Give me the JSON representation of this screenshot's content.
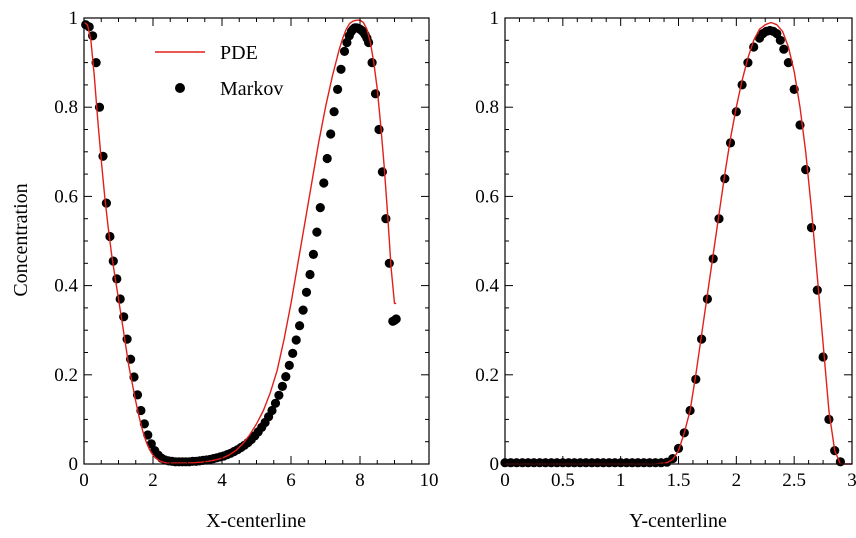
{
  "chart_data": [
    {
      "type": "line",
      "xlabel": "X-centerline",
      "ylabel": "Concentration",
      "xlim": [
        0,
        10
      ],
      "ylim": [
        0,
        1
      ],
      "xticks": [
        "0",
        "2",
        "4",
        "6",
        "8",
        "10"
      ],
      "yticks": [
        "0",
        "0.2",
        "0.4",
        "0.6",
        "0.8",
        "1"
      ],
      "legend": {
        "position": "top-left",
        "entries": [
          "PDE",
          "Markov"
        ]
      },
      "series": [
        {
          "name": "PDE",
          "style": "line",
          "color": "#e0201a",
          "x": [
            0.0,
            0.1,
            0.2,
            0.3,
            0.4,
            0.5,
            0.6,
            0.7,
            0.8,
            0.9,
            1.0,
            1.1,
            1.2,
            1.3,
            1.4,
            1.5,
            1.6,
            1.7,
            1.8,
            1.9,
            2.0,
            2.1,
            2.2,
            2.3,
            2.4,
            2.6,
            2.8,
            3.0,
            3.2,
            3.4,
            3.6,
            3.8,
            4.0,
            4.2,
            4.4,
            4.6,
            4.8,
            5.0,
            5.2,
            5.4,
            5.6,
            5.8,
            6.0,
            6.2,
            6.4,
            6.6,
            6.8,
            7.0,
            7.2,
            7.4,
            7.5,
            7.6,
            7.7,
            7.8,
            7.9,
            8.0,
            8.1,
            8.2,
            8.3,
            8.4,
            8.5,
            8.6,
            8.7,
            8.8,
            8.9,
            8.95,
            9.0,
            9.05
          ],
          "y": [
            0.99,
            0.985,
            0.95,
            0.87,
            0.77,
            0.68,
            0.6,
            0.53,
            0.47,
            0.42,
            0.37,
            0.32,
            0.27,
            0.22,
            0.18,
            0.14,
            0.105,
            0.075,
            0.05,
            0.032,
            0.02,
            0.012,
            0.007,
            0.004,
            0.002,
            0.002,
            0.002,
            0.002,
            0.003,
            0.004,
            0.006,
            0.009,
            0.013,
            0.02,
            0.03,
            0.045,
            0.065,
            0.09,
            0.12,
            0.16,
            0.21,
            0.28,
            0.36,
            0.45,
            0.54,
            0.63,
            0.72,
            0.8,
            0.87,
            0.93,
            0.955,
            0.975,
            0.988,
            0.993,
            0.995,
            0.995,
            0.99,
            0.975,
            0.945,
            0.9,
            0.84,
            0.76,
            0.67,
            0.56,
            0.44,
            0.4,
            0.36,
            0.36
          ]
        },
        {
          "name": "Markov",
          "style": "points",
          "color": "#000000",
          "x": [
            0.05,
            0.15,
            0.25,
            0.35,
            0.45,
            0.55,
            0.65,
            0.75,
            0.85,
            0.95,
            1.05,
            1.15,
            1.25,
            1.35,
            1.45,
            1.55,
            1.65,
            1.75,
            1.85,
            1.95,
            2.05,
            2.15,
            2.25,
            2.35,
            2.45,
            2.55,
            2.65,
            2.75,
            2.85,
            2.95,
            3.05,
            3.15,
            3.25,
            3.35,
            3.45,
            3.55,
            3.65,
            3.75,
            3.85,
            3.95,
            4.05,
            4.15,
            4.25,
            4.35,
            4.45,
            4.55,
            4.65,
            4.75,
            4.85,
            4.95,
            5.05,
            5.15,
            5.25,
            5.35,
            5.45,
            5.55,
            5.65,
            5.75,
            5.85,
            5.95,
            6.05,
            6.15,
            6.25,
            6.35,
            6.45,
            6.55,
            6.65,
            6.75,
            6.85,
            6.95,
            7.05,
            7.15,
            7.25,
            7.35,
            7.45,
            7.55,
            7.62,
            7.69,
            7.75,
            7.8,
            7.85,
            7.9,
            7.95,
            8.0,
            8.05,
            8.1,
            8.15,
            8.2,
            8.25,
            8.35,
            8.45,
            8.55,
            8.65,
            8.75,
            8.85,
            8.95,
            9.0,
            9.05
          ],
          "y": [
            0.985,
            0.98,
            0.96,
            0.9,
            0.8,
            0.69,
            0.585,
            0.51,
            0.455,
            0.415,
            0.37,
            0.33,
            0.28,
            0.235,
            0.195,
            0.155,
            0.12,
            0.09,
            0.065,
            0.045,
            0.03,
            0.02,
            0.013,
            0.009,
            0.007,
            0.006,
            0.005,
            0.005,
            0.005,
            0.005,
            0.005,
            0.006,
            0.006,
            0.007,
            0.008,
            0.009,
            0.01,
            0.012,
            0.014,
            0.016,
            0.018,
            0.021,
            0.024,
            0.028,
            0.032,
            0.037,
            0.042,
            0.048,
            0.055,
            0.063,
            0.072,
            0.082,
            0.093,
            0.106,
            0.12,
            0.136,
            0.154,
            0.174,
            0.196,
            0.221,
            0.248,
            0.278,
            0.31,
            0.345,
            0.385,
            0.425,
            0.47,
            0.52,
            0.575,
            0.63,
            0.685,
            0.74,
            0.79,
            0.84,
            0.885,
            0.925,
            0.945,
            0.96,
            0.97,
            0.975,
            0.978,
            0.978,
            0.977,
            0.975,
            0.972,
            0.968,
            0.962,
            0.955,
            0.945,
            0.9,
            0.83,
            0.75,
            0.655,
            0.55,
            0.45,
            0.32,
            0.322,
            0.325
          ]
        }
      ]
    },
    {
      "type": "line",
      "xlabel": "Y-centerline",
      "ylabel": "",
      "xlim": [
        0,
        3
      ],
      "ylim": [
        0,
        1
      ],
      "xticks": [
        "0",
        "0.5",
        "1",
        "1.5",
        "2",
        "2.5",
        "3"
      ],
      "yticks": [
        "0",
        "0.2",
        "0.4",
        "0.6",
        "0.8",
        "1"
      ],
      "series": [
        {
          "name": "PDE",
          "style": "line",
          "color": "#e0201a",
          "x": [
            0.0,
            0.5,
            1.0,
            1.3,
            1.4,
            1.45,
            1.5,
            1.55,
            1.6,
            1.65,
            1.7,
            1.75,
            1.8,
            1.85,
            1.9,
            1.95,
            2.0,
            2.05,
            2.1,
            2.15,
            2.2,
            2.25,
            2.3,
            2.35,
            2.4,
            2.45,
            2.5,
            2.55,
            2.6,
            2.65,
            2.7,
            2.75,
            2.8,
            2.85,
            2.9,
            2.95,
            3.0
          ],
          "y": [
            0.0,
            0.0,
            0.0,
            0.0,
            0.003,
            0.01,
            0.03,
            0.07,
            0.12,
            0.2,
            0.29,
            0.38,
            0.47,
            0.56,
            0.65,
            0.73,
            0.8,
            0.86,
            0.91,
            0.95,
            0.975,
            0.985,
            0.99,
            0.985,
            0.97,
            0.935,
            0.88,
            0.8,
            0.7,
            0.57,
            0.42,
            0.27,
            0.12,
            0.03,
            0.0,
            0.0,
            0.0
          ]
        },
        {
          "name": "Markov",
          "style": "points",
          "color": "#000000",
          "x": [
            0.0,
            0.05,
            0.1,
            0.15,
            0.2,
            0.25,
            0.3,
            0.35,
            0.4,
            0.45,
            0.5,
            0.55,
            0.6,
            0.65,
            0.7,
            0.75,
            0.8,
            0.85,
            0.9,
            0.95,
            1.0,
            1.05,
            1.1,
            1.15,
            1.2,
            1.25,
            1.3,
            1.35,
            1.4,
            1.45,
            1.5,
            1.55,
            1.6,
            1.65,
            1.7,
            1.75,
            1.8,
            1.85,
            1.9,
            1.95,
            2.0,
            2.05,
            2.1,
            2.15,
            2.2,
            2.23,
            2.26,
            2.29,
            2.32,
            2.35,
            2.38,
            2.41,
            2.45,
            2.5,
            2.55,
            2.6,
            2.65,
            2.7,
            2.75,
            2.8,
            2.85,
            2.9
          ],
          "y": [
            0.003,
            0.003,
            0.003,
            0.003,
            0.003,
            0.003,
            0.003,
            0.003,
            0.003,
            0.003,
            0.003,
            0.003,
            0.003,
            0.003,
            0.003,
            0.003,
            0.003,
            0.003,
            0.003,
            0.003,
            0.003,
            0.003,
            0.003,
            0.003,
            0.003,
            0.003,
            0.003,
            0.003,
            0.004,
            0.012,
            0.035,
            0.07,
            0.12,
            0.19,
            0.28,
            0.37,
            0.46,
            0.55,
            0.64,
            0.72,
            0.79,
            0.85,
            0.9,
            0.935,
            0.955,
            0.965,
            0.97,
            0.972,
            0.97,
            0.965,
            0.95,
            0.93,
            0.9,
            0.84,
            0.76,
            0.66,
            0.53,
            0.39,
            0.24,
            0.1,
            0.03,
            0.005
          ]
        }
      ]
    }
  ]
}
